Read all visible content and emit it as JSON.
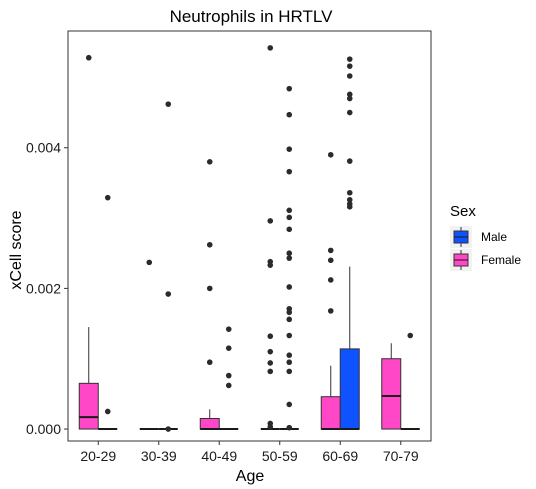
{
  "chart_data": {
    "type": "box",
    "title": "Neutrophils in HRTLV",
    "xlabel": "Age",
    "ylabel": "xCell score",
    "ylim": [
      -0.00017,
      0.00566
    ],
    "yticks": [
      {
        "value": 0.0,
        "label": "0.000"
      },
      {
        "value": 0.002,
        "label": "0.002"
      },
      {
        "value": 0.004,
        "label": "0.004"
      }
    ],
    "categories": [
      "20-29",
      "30-39",
      "40-49",
      "50-59",
      "60-69",
      "70-79"
    ],
    "legend": {
      "title": "Sex",
      "position": "right",
      "entries": [
        {
          "name": "Male",
          "color": "#0F52FF"
        },
        {
          "name": "Female",
          "color": "#FF47C8"
        }
      ]
    },
    "series": [
      {
        "name": "Female",
        "color": "#FF47C8",
        "boxes": [
          {
            "category": "20-29",
            "min": 0.0,
            "q1": 0.0,
            "median": 0.00017,
            "q3": 0.00065,
            "max": 0.00145,
            "outliers": [
              0.00528
            ]
          },
          {
            "category": "30-39",
            "min": 0.0,
            "q1": 0.0,
            "median": 0.0,
            "q3": 0.0,
            "max": 0.0,
            "outliers": [
              0.00237
            ]
          },
          {
            "category": "40-49",
            "min": 0.0,
            "q1": 0.0,
            "median": 0.0,
            "q3": 0.00015,
            "max": 0.00028,
            "outliers": [
              0.0038,
              0.00262,
              0.002,
              0.00095
            ]
          },
          {
            "category": "50-59",
            "min": 0.0,
            "q1": 0.0,
            "median": 0.0,
            "q3": 0.0,
            "max": 0.0,
            "outliers": [
              0.00542,
              0.00296,
              0.00238,
              0.00233,
              0.00132,
              0.0011,
              0.00094,
              0.00082,
              8e-05,
              3e-05
            ]
          },
          {
            "category": "60-69",
            "min": 0.0,
            "q1": 0.0,
            "median": 0.0,
            "q3": 0.00046,
            "max": 0.0009,
            "outliers": [
              0.0039,
              0.00254,
              0.0024,
              0.00212,
              0.00168
            ]
          },
          {
            "category": "70-79",
            "min": 0.0,
            "q1": 0.0,
            "median": 0.00047,
            "q3": 0.001,
            "max": 0.00122,
            "outliers": []
          }
        ]
      },
      {
        "name": "Male",
        "color": "#0F52FF",
        "boxes": [
          {
            "category": "20-29",
            "min": 0.0,
            "q1": 0.0,
            "median": 0.0,
            "q3": 0.0,
            "max": 0.0,
            "outliers": [
              0.00329,
              0.00025
            ]
          },
          {
            "category": "30-39",
            "min": 0.0,
            "q1": 0.0,
            "median": 0.0,
            "q3": 0.0,
            "max": 0.0,
            "outliers": [
              0.00462,
              0.00192,
              0.0
            ]
          },
          {
            "category": "40-49",
            "min": 0.0,
            "q1": 0.0,
            "median": 0.0,
            "q3": 0.0,
            "max": 0.0,
            "outliers": [
              0.00142,
              0.00115,
              0.00076,
              0.00062
            ]
          },
          {
            "category": "50-59",
            "min": 0.0,
            "q1": 0.0,
            "median": 0.0,
            "q3": 0.0,
            "max": 0.0,
            "outliers": [
              0.00484,
              0.00447,
              0.00398,
              0.00366,
              0.00311,
              0.00301,
              0.00284,
              0.0025,
              0.00243,
              0.00202,
              0.00171,
              0.00166,
              0.00156,
              0.00133,
              0.00105,
              0.00095,
              0.00082,
              0.00035,
              2e-05
            ]
          },
          {
            "category": "60-69",
            "min": 0.0,
            "q1": 0.0,
            "median": 0.0,
            "q3": 0.00114,
            "max": 0.00231,
            "outliers": [
              0.00526,
              0.00516,
              0.00502,
              0.00476,
              0.0047,
              0.0045,
              0.00381,
              0.00336,
              0.00326,
              0.0032,
              0.00316
            ]
          },
          {
            "category": "70-79",
            "min": 0.0,
            "q1": 0.0,
            "median": 0.0,
            "q3": 0.0,
            "max": 0.0,
            "outliers": [
              0.00133
            ]
          }
        ]
      }
    ]
  }
}
